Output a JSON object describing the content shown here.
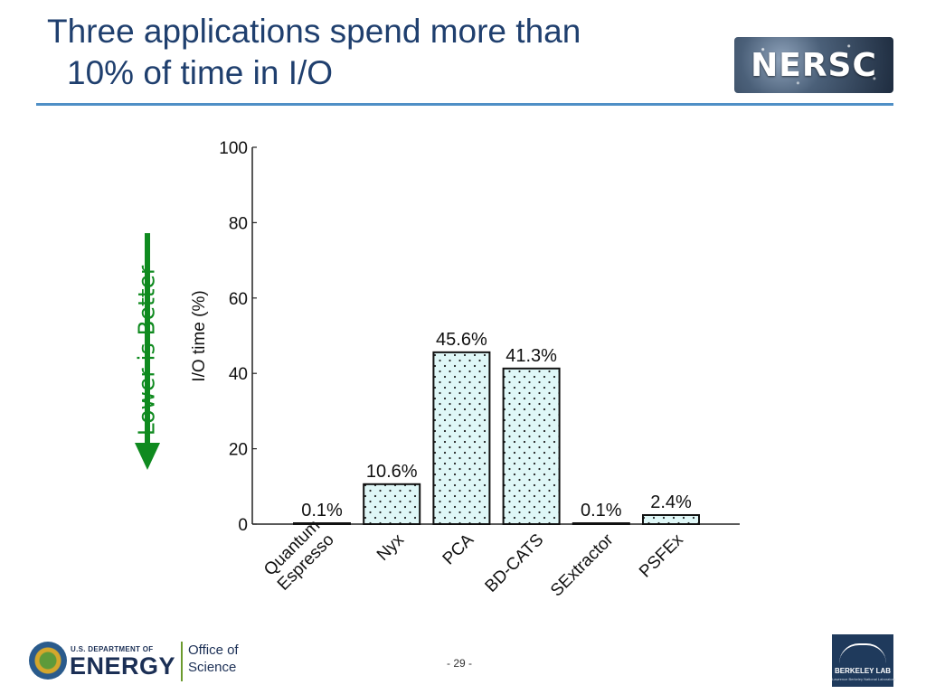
{
  "slide": {
    "title_line1": "Three applications spend more than",
    "title_line2": "10% of time in I/O",
    "page_number": "- 29 -",
    "annotation": "Lower is Better",
    "annotation_color": "#0f8a1f",
    "title_color": "#1f3f6e",
    "rule_color": "#4f8fc6"
  },
  "logos": {
    "nersc": "NERSC",
    "doe_dept": "U.S. DEPARTMENT OF",
    "doe_energy": "ENERGY",
    "doe_office_line1": "Office of",
    "doe_office_line2": "Science",
    "berkeley": "BERKELEY LAB",
    "berkeley_sub": "Lawrence Berkeley National Laboratory"
  },
  "chart_data": {
    "type": "bar",
    "title": "",
    "xlabel": "",
    "ylabel": "I/O time (%)",
    "categories": [
      "Quantum\nEspresso",
      "Nyx",
      "PCA",
      "BD-CATS",
      "SExtractor",
      "PSFEx"
    ],
    "values": [
      0.1,
      10.6,
      45.6,
      41.3,
      0.1,
      2.4
    ],
    "value_labels": [
      "0.1%",
      "10.6%",
      "45.6%",
      "41.3%",
      "0.1%",
      "2.4%"
    ],
    "yticks": [
      0,
      20,
      40,
      60,
      80,
      100
    ],
    "ylim": [
      0,
      100
    ],
    "bar_fill": "#dff7f7",
    "bar_stroke": "#111111",
    "bar_pattern": "dots",
    "grid": false
  }
}
